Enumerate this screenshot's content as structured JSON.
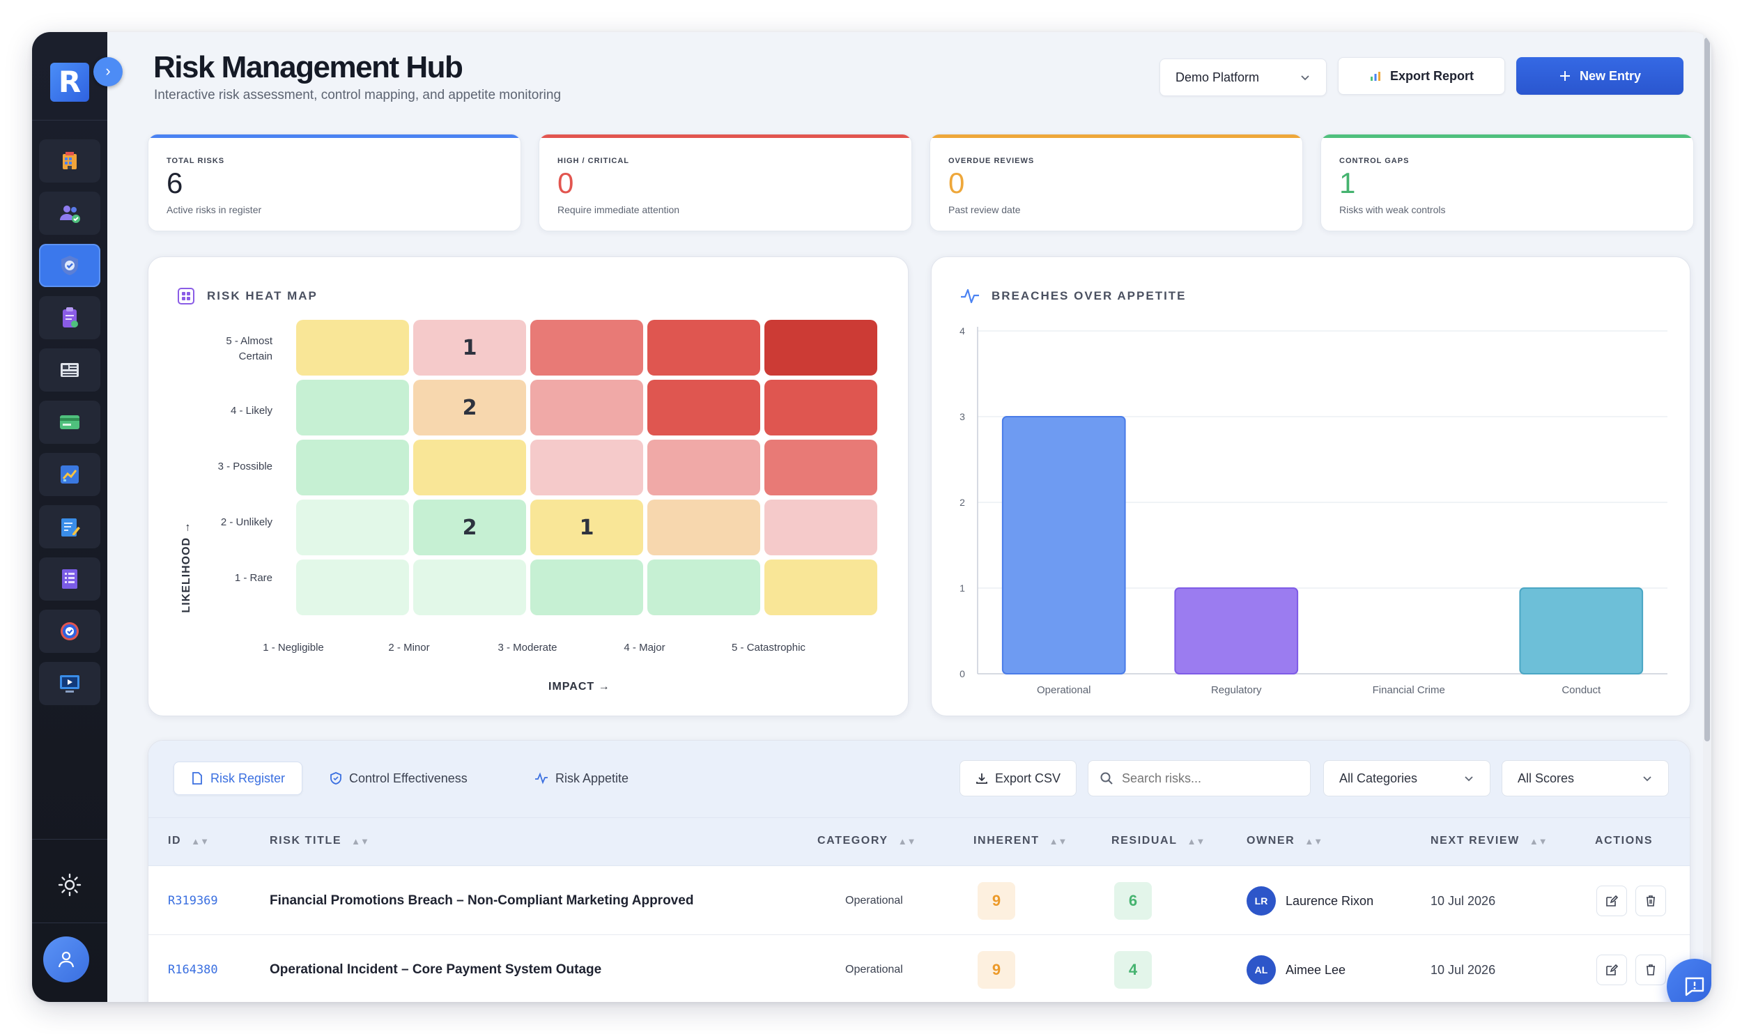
{
  "header": {
    "title": "Risk Management Hub",
    "subtitle": "Interactive risk assessment, control mapping, and appetite monitoring",
    "platform": "Demo Platform",
    "export_report": "Export Report",
    "new_entry": "New Entry"
  },
  "sidebar": {
    "logo": "R",
    "items": [
      {
        "icon": "building-icon"
      },
      {
        "icon": "users-check-icon"
      },
      {
        "icon": "shield-check-icon",
        "active": true
      },
      {
        "icon": "clipboard-check-icon"
      },
      {
        "icon": "news-list-icon"
      },
      {
        "icon": "card-icon"
      },
      {
        "icon": "chart-line-icon"
      },
      {
        "icon": "edit-doc-icon"
      },
      {
        "icon": "list-doc-icon"
      },
      {
        "icon": "target-icon"
      },
      {
        "icon": "monitor-play-icon"
      }
    ]
  },
  "stats": [
    {
      "label": "TOTAL RISKS",
      "value": "6",
      "desc": "Active risks in register",
      "color": "#4a82f2",
      "value_color": "#1e2230"
    },
    {
      "label": "HIGH / CRITICAL",
      "value": "0",
      "desc": "Require immediate attention",
      "color": "#e2554f",
      "value_color": "#e2554f"
    },
    {
      "label": "OVERDUE REVIEWS",
      "value": "0",
      "desc": "Past review date",
      "color": "#eea73a",
      "value_color": "#eea73a"
    },
    {
      "label": "CONTROL GAPS",
      "value": "1",
      "desc": "Risks with weak controls",
      "color": "#4fc07d",
      "value_color": "#45b36f"
    }
  ],
  "heatmap": {
    "title": "RISK HEAT MAP",
    "x_axis": "IMPACT →",
    "y_axis": "LIKELIHOOD →",
    "rows": [
      "5 - Almost Certain",
      "4 - Likely",
      "3 - Possible",
      "2 - Unlikely",
      "1 - Rare"
    ],
    "cols": [
      "1 - Negligible",
      "2 - Minor",
      "3 - Moderate",
      "4 - Major",
      "5 - Catastrophic"
    ],
    "colors": [
      [
        "#f9e697",
        "#f5caca",
        "#e87a76",
        "#df5650",
        "#cc3b35"
      ],
      [
        "#c6f0d3",
        "#f7d7ae",
        "#f0a9a7",
        "#df5650",
        "#df5650"
      ],
      [
        "#c6f0d3",
        "#f9e697",
        "#f5caca",
        "#f0a9a7",
        "#e87a76"
      ],
      [
        "#e2f8e8",
        "#c6f0d3",
        "#f9e697",
        "#f7d7ae",
        "#f5caca"
      ],
      [
        "#e2f8e8",
        "#e2f8e8",
        "#c6f0d3",
        "#c6f0d3",
        "#f9e697"
      ]
    ],
    "counts": [
      [
        "",
        "1",
        "",
        "",
        ""
      ],
      [
        "",
        "2",
        "",
        "",
        ""
      ],
      [
        "",
        "",
        "",
        "",
        ""
      ],
      [
        "",
        "2",
        "1",
        "",
        ""
      ],
      [
        "",
        "",
        "",
        "",
        ""
      ]
    ]
  },
  "chart_data": {
    "type": "bar",
    "title": "BREACHES OVER APPETITE",
    "categories": [
      "Operational",
      "Regulatory",
      "Financial Crime",
      "Conduct"
    ],
    "values": [
      3,
      1,
      0,
      1
    ],
    "colors": [
      "#6e9bf2",
      "#9b7cf0",
      "#9ad0a8",
      "#6dbfd8"
    ],
    "stroke_colors": [
      "#4a7ce8",
      "#7e5be6",
      "#4fb06e",
      "#4aa6c4"
    ],
    "ylim": [
      0,
      4
    ],
    "yticks": [
      0,
      1,
      2,
      3,
      4
    ],
    "xlabel": "",
    "ylabel": "",
    "grid": true
  },
  "table": {
    "tabs": [
      {
        "label": "Risk Register",
        "active": true
      },
      {
        "label": "Control Effectiveness"
      },
      {
        "label": "Risk Appetite"
      }
    ],
    "export_csv": "Export CSV",
    "search_placeholder": "Search risks...",
    "category_filter": "All Categories",
    "score_filter": "All Scores",
    "columns": [
      "ID",
      "RISK TITLE",
      "CATEGORY",
      "INHERENT",
      "RESIDUAL",
      "OWNER",
      "NEXT REVIEW",
      "ACTIONS"
    ],
    "rows": [
      {
        "id": "R319369",
        "title": "Financial Promotions Breach – Non-Compliant Marketing Approved",
        "category": "Operational",
        "inherent": "9",
        "residual": "6",
        "owner_initials": "LR",
        "owner": "Laurence Rixon",
        "next_review": "10 Jul 2026"
      },
      {
        "id": "R164380",
        "title": "Operational Incident – Core Payment System Outage",
        "category": "Operational",
        "inherent": "9",
        "residual": "4",
        "owner_initials": "AL",
        "owner": "Aimee Lee",
        "next_review": "10 Jul 2026"
      }
    ]
  }
}
